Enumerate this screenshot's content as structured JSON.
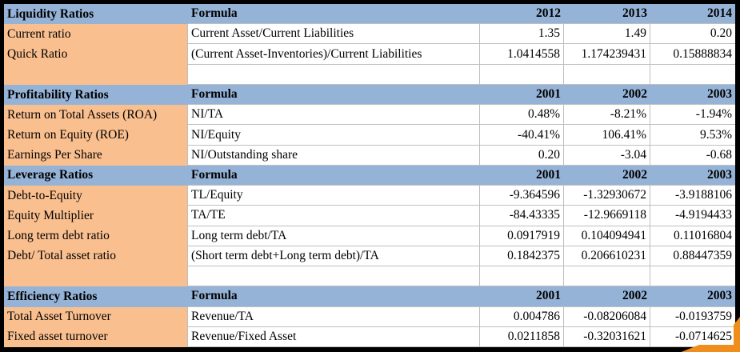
{
  "table": {
    "sections": [
      {
        "title": "Liquidity Ratios",
        "formula_header": "Formula",
        "years": [
          "2012",
          "2013",
          "2014"
        ],
        "rows": [
          {
            "label": "Current ratio",
            "formula": "Current Asset/Current Liabilities",
            "values": [
              "1.35",
              "1.49",
              "0.20"
            ]
          },
          {
            "label": "Quick Ratio",
            "formula": "(Current Asset-Inventories)/Current Liabilities",
            "values": [
              "1.0414558",
              "1.174239431",
              "0.15888834"
            ]
          },
          {
            "label": "",
            "formula": "",
            "values": [
              "",
              "",
              ""
            ],
            "empty": true
          }
        ]
      },
      {
        "title": "Profitability Ratios",
        "formula_header": "Formula",
        "years": [
          "2001",
          "2002",
          "2003"
        ],
        "rows": [
          {
            "label": "Return on Total Assets (ROA)",
            "formula": "NI/TA",
            "values": [
              "0.48%",
              "-8.21%",
              "-1.94%"
            ]
          },
          {
            "label": "Return on Equity (ROE)",
            "formula": "NI/Equity",
            "values": [
              "-40.41%",
              "106.41%",
              "9.53%"
            ]
          },
          {
            "label": "Earnings Per Share",
            "formula": "NI/Outstanding share",
            "values": [
              "0.20",
              "-3.04",
              "-0.68"
            ]
          }
        ]
      },
      {
        "title": "Leverage Ratios",
        "formula_header": "Formula",
        "years": [
          "2001",
          "2002",
          "2003"
        ],
        "rows": [
          {
            "label": "Debt-to-Equity",
            "formula": "TL/Equity",
            "values": [
              "-9.364596",
              "-1.32930672",
              "-3.9188106"
            ]
          },
          {
            "label": "Equity Multiplier",
            "formula": "TA/TE",
            "values": [
              "-84.43335",
              "-12.9669118",
              "-4.9194433"
            ]
          },
          {
            "label": "Long term debt ratio",
            "formula": "Long term debt/TA",
            "values": [
              "0.0917919",
              "0.104094941",
              "0.11016804"
            ]
          },
          {
            "label": "Debt/ Total asset ratio",
            "formula": "(Short term debt+Long term debt)/TA",
            "values": [
              "0.1842375",
              "0.206610231",
              "0.88447359"
            ]
          },
          {
            "label": "",
            "formula": "",
            "values": [
              "",
              "",
              ""
            ],
            "empty": true
          }
        ]
      },
      {
        "title": "Efficiency Ratios",
        "formula_header": "Formula",
        "years": [
          "2001",
          "2002",
          "2003"
        ],
        "rows": [
          {
            "label": "Total Asset Turnover",
            "formula": "Revenue/TA",
            "values": [
              "0.004786",
              "-0.08206084",
              "-0.0193759"
            ]
          },
          {
            "label": "Fixed asset turnover",
            "formula": "Revenue/Fixed Asset",
            "values": [
              "0.0211858",
              "-0.32031621",
              "-0.0714625"
            ]
          }
        ]
      }
    ],
    "colors": {
      "header_fill": "#95b3d7",
      "label_fill": "#fabf8f",
      "gridline": "#bfbfbf",
      "outer_border": "#000000",
      "corner_shape": "#ef8d1d"
    }
  }
}
